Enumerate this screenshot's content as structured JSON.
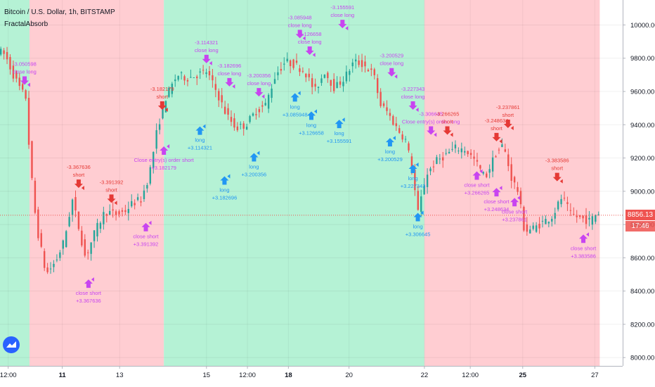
{
  "header": {
    "symbol_line": "Bitcoin / U.S. Dollar, 1h, BITSTAMP",
    "indicator": "FractalAbsorb"
  },
  "price_tag": {
    "value": "8856.13",
    "countdown": "17:46"
  },
  "colors": {
    "bg_green": "#b5f2d5",
    "bg_red": "#ffcdd2",
    "candle_up": "#26a69a",
    "candle_down": "#ef5350",
    "entry_long": "#2196f3",
    "entry_short": "#e53935",
    "exit": "#c844f0",
    "price_line": "#ef5350",
    "axis_text": "#131722"
  },
  "chart_data": {
    "type": "candlestick",
    "title": "Bitcoin / U.S. Dollar, 1h, BITSTAMP",
    "y_ticks": [
      8000,
      8200,
      8400,
      8600,
      8800,
      9000,
      9200,
      9400,
      9600,
      9800,
      10000
    ],
    "y_tick_labels": [
      "8000.00",
      "8200.00",
      "8400.00",
      "8600.00",
      "8800.00",
      "9000.00",
      "9200.00",
      "9400.00",
      "9600.00",
      "9800.00",
      "10000.00"
    ],
    "ylim": [
      7950,
      10150
    ],
    "x_range": [
      0,
      38
    ],
    "x_ticks": [
      {
        "t": 0.5,
        "label": "12:00",
        "bold": false
      },
      {
        "t": 3.8,
        "label": "11",
        "bold": true
      },
      {
        "t": 7.3,
        "label": "13",
        "bold": false
      },
      {
        "t": 12.6,
        "label": "15",
        "bold": false
      },
      {
        "t": 15.1,
        "label": "12:00",
        "bold": false
      },
      {
        "t": 17.6,
        "label": "18",
        "bold": true
      },
      {
        "t": 21.3,
        "label": "20",
        "bold": false
      },
      {
        "t": 25.9,
        "label": "22",
        "bold": false
      },
      {
        "t": 28.7,
        "label": "12:00",
        "bold": false
      },
      {
        "t": 31.9,
        "label": "25",
        "bold": true
      },
      {
        "t": 36.3,
        "label": "27",
        "bold": false
      }
    ],
    "background_regions": [
      {
        "from": 0,
        "to": 1.8,
        "state": "green"
      },
      {
        "from": 1.8,
        "to": 10.0,
        "state": "red"
      },
      {
        "from": 10.0,
        "to": 25.9,
        "state": "green"
      },
      {
        "from": 25.9,
        "to": 36.6,
        "state": "red"
      }
    ],
    "price_path": [
      [
        0.0,
        9850
      ],
      [
        0.5,
        9820
      ],
      [
        1.0,
        9700
      ],
      [
        1.5,
        9600
      ],
      [
        1.8,
        9560
      ],
      [
        2.0,
        9200
      ],
      [
        2.4,
        8800
      ],
      [
        3.0,
        8500
      ],
      [
        3.6,
        8580
      ],
      [
        4.1,
        8700
      ],
      [
        4.6,
        8950
      ],
      [
        5.0,
        8780
      ],
      [
        5.4,
        8600
      ],
      [
        6.0,
        8760
      ],
      [
        6.6,
        8880
      ],
      [
        7.3,
        8860
      ],
      [
        7.8,
        8880
      ],
      [
        8.3,
        8930
      ],
      [
        8.8,
        8950
      ],
      [
        9.3,
        9100
      ],
      [
        9.8,
        9380
      ],
      [
        10.3,
        9560
      ],
      [
        11.0,
        9700
      ],
      [
        11.6,
        9680
      ],
      [
        12.2,
        9700
      ],
      [
        12.8,
        9720
      ],
      [
        13.4,
        9600
      ],
      [
        14.0,
        9460
      ],
      [
        14.6,
        9380
      ],
      [
        15.2,
        9400
      ],
      [
        15.8,
        9480
      ],
      [
        16.4,
        9520
      ],
      [
        17.0,
        9700
      ],
      [
        17.6,
        9780
      ],
      [
        18.2,
        9760
      ],
      [
        18.8,
        9720
      ],
      [
        19.4,
        9600
      ],
      [
        20.0,
        9720
      ],
      [
        20.6,
        9620
      ],
      [
        21.2,
        9680
      ],
      [
        21.8,
        9780
      ],
      [
        22.4,
        9760
      ],
      [
        23.0,
        9700
      ],
      [
        23.4,
        9520
      ],
      [
        23.8,
        9480
      ],
      [
        24.4,
        9380
      ],
      [
        25.0,
        9300
      ],
      [
        25.4,
        9080
      ],
      [
        25.7,
        8870
      ],
      [
        26.2,
        9100
      ],
      [
        26.8,
        9180
      ],
      [
        27.4,
        9220
      ],
      [
        28.0,
        9260
      ],
      [
        28.6,
        9250
      ],
      [
        29.2,
        9180
      ],
      [
        29.8,
        9080
      ],
      [
        30.4,
        9220
      ],
      [
        30.9,
        9280
      ],
      [
        31.4,
        9080
      ],
      [
        31.8,
        9000
      ],
      [
        32.2,
        8760
      ],
      [
        32.8,
        8780
      ],
      [
        33.4,
        8820
      ],
      [
        33.9,
        8850
      ],
      [
        34.5,
        8970
      ],
      [
        35.0,
        8860
      ],
      [
        35.6,
        8840
      ],
      [
        36.2,
        8820
      ],
      [
        36.6,
        8870
      ]
    ],
    "markers": [
      {
        "t": 1.5,
        "price": 9640,
        "kind": "exit",
        "dir": "down",
        "labels": [
          "-3.050598",
          "close long"
        ]
      },
      {
        "t": 4.8,
        "price": 9020,
        "kind": "entry_short",
        "dir": "down",
        "labels": [
          "-3.367636",
          "short"
        ]
      },
      {
        "t": 5.4,
        "price": 8470,
        "kind": "exit",
        "dir": "up",
        "labels": [
          "close short",
          "+3.367636"
        ]
      },
      {
        "t": 6.8,
        "price": 8930,
        "kind": "entry_short",
        "dir": "down",
        "labels": [
          "-3.391392",
          "short"
        ]
      },
      {
        "t": 8.9,
        "price": 8810,
        "kind": "exit",
        "dir": "up",
        "labels": [
          "close short",
          "+3.391392"
        ]
      },
      {
        "t": 9.9,
        "price": 9490,
        "kind": "entry_short",
        "dir": "down",
        "labels": [
          "-3.182179",
          "short"
        ]
      },
      {
        "t": 10.0,
        "price": 9270,
        "kind": "exit",
        "dir": "up",
        "labels": [
          "Close entry(s) order short",
          "+3.182179"
        ]
      },
      {
        "t": 12.6,
        "price": 9770,
        "kind": "exit",
        "dir": "down",
        "labels": [
          "-3.114321",
          "close long"
        ]
      },
      {
        "t": 12.2,
        "price": 9390,
        "kind": "entry_long",
        "dir": "up",
        "labels": [
          "long",
          "+3.114321"
        ]
      },
      {
        "t": 14.0,
        "price": 9630,
        "kind": "exit",
        "dir": "down",
        "labels": [
          "-3.182696",
          "close long"
        ]
      },
      {
        "t": 13.7,
        "price": 9090,
        "kind": "entry_long",
        "dir": "up",
        "labels": [
          "long",
          "+3.182696"
        ]
      },
      {
        "t": 15.8,
        "price": 9570,
        "kind": "exit",
        "dir": "down",
        "labels": [
          "-3.200356",
          "close long"
        ]
      },
      {
        "t": 15.5,
        "price": 9230,
        "kind": "entry_long",
        "dir": "up",
        "labels": [
          "long",
          "+3.200356"
        ]
      },
      {
        "t": 18.3,
        "price": 9920,
        "kind": "exit",
        "dir": "down",
        "labels": [
          "-3.085948",
          "close long"
        ]
      },
      {
        "t": 18.0,
        "price": 9590,
        "kind": "entry_long",
        "dir": "up",
        "labels": [
          "long",
          "+3.085948"
        ]
      },
      {
        "t": 18.9,
        "price": 9820,
        "kind": "exit",
        "dir": "down",
        "labels": [
          "-3.126658",
          "close long"
        ]
      },
      {
        "t": 19.0,
        "price": 9480,
        "kind": "entry_long",
        "dir": "up",
        "labels": [
          "long",
          "+3.126658"
        ]
      },
      {
        "t": 20.9,
        "price": 9980,
        "kind": "exit",
        "dir": "down",
        "labels": [
          "-3.155591",
          "close long"
        ]
      },
      {
        "t": 20.7,
        "price": 9430,
        "kind": "entry_long",
        "dir": "up",
        "labels": [
          "long",
          "+3.155591"
        ]
      },
      {
        "t": 23.9,
        "price": 9690,
        "kind": "exit",
        "dir": "down",
        "labels": [
          "-3.200529",
          "close long"
        ]
      },
      {
        "t": 23.8,
        "price": 9320,
        "kind": "entry_long",
        "dir": "up",
        "labels": [
          "long",
          "+3.200529"
        ]
      },
      {
        "t": 25.2,
        "price": 9490,
        "kind": "exit",
        "dir": "down",
        "labels": [
          "-3.227343",
          "close long"
        ]
      },
      {
        "t": 25.2,
        "price": 9160,
        "kind": "entry_long",
        "dir": "up",
        "labels": [
          "long",
          "+3.227343"
        ]
      },
      {
        "t": 26.3,
        "price": 9340,
        "kind": "exit",
        "dir": "down",
        "labels": [
          "-3.306645",
          "Close entry(s) order long"
        ]
      },
      {
        "t": 25.5,
        "price": 8870,
        "kind": "entry_long",
        "dir": "up",
        "labels": [
          "long",
          "+3.306645"
        ]
      },
      {
        "t": 27.3,
        "price": 9340,
        "kind": "entry_short",
        "dir": "down",
        "labels": [
          "-3.266265",
          "short"
        ]
      },
      {
        "t": 29.1,
        "price": 9120,
        "kind": "exit",
        "dir": "up",
        "labels": [
          "close short",
          "+3.266265"
        ]
      },
      {
        "t": 30.3,
        "price": 9300,
        "kind": "entry_short",
        "dir": "down",
        "labels": [
          "-3.248634",
          "short"
        ]
      },
      {
        "t": 30.3,
        "price": 9020,
        "kind": "exit",
        "dir": "up",
        "labels": [
          "close short",
          "+3.248634"
        ]
      },
      {
        "t": 31.0,
        "price": 9380,
        "kind": "entry_short",
        "dir": "down",
        "labels": [
          "-3.237861",
          "short"
        ]
      },
      {
        "t": 31.4,
        "price": 8960,
        "kind": "exit",
        "dir": "up",
        "labels": [
          "close short",
          "+3.237861"
        ]
      },
      {
        "t": 34.0,
        "price": 9060,
        "kind": "entry_short",
        "dir": "down",
        "labels": [
          "-3.383586",
          "short"
        ]
      },
      {
        "t": 35.6,
        "price": 8740,
        "kind": "exit",
        "dir": "up",
        "labels": [
          "close short",
          "+3.383586"
        ]
      }
    ]
  }
}
